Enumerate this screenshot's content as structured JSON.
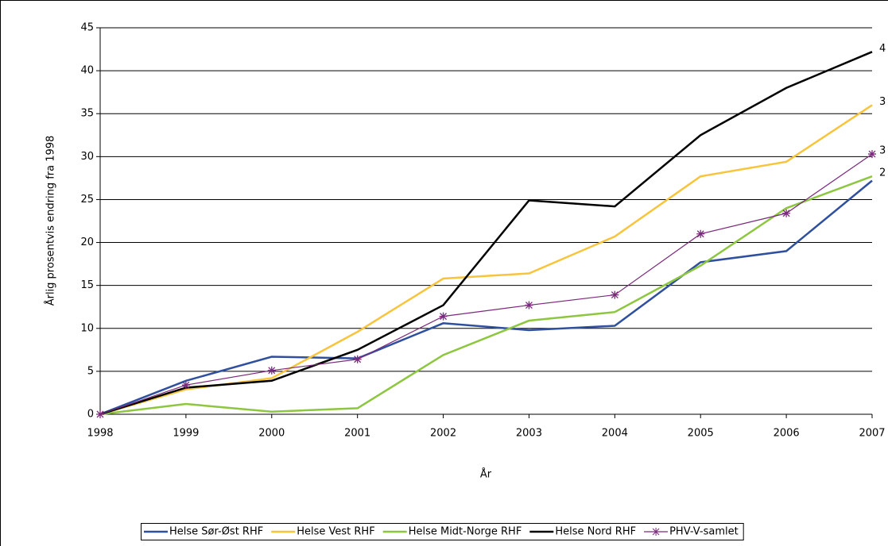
{
  "chart_data": {
    "type": "line",
    "y_label": "Årlig prosentvis endring fra 1998",
    "x_label": "År",
    "x": [
      1998,
      1999,
      2000,
      2001,
      2002,
      2003,
      2004,
      2005,
      2006,
      2007
    ],
    "xlim": [
      1998,
      2007
    ],
    "xticks": [
      1998,
      1999,
      2000,
      2001,
      2002,
      2003,
      2004,
      2005,
      2006,
      2007
    ],
    "ylim": [
      0,
      45
    ],
    "yticks": [
      0,
      5,
      10,
      15,
      20,
      25,
      30,
      35,
      40,
      45
    ],
    "grid": true,
    "legend": "bottom",
    "series": [
      {
        "name": "Helse Sør-Øst RHF",
        "color": "#2f4f9f",
        "values": [
          0,
          3.9,
          6.7,
          6.5,
          10.6,
          9.8,
          10.3,
          17.7,
          19.0,
          27.2
        ]
      },
      {
        "name": "Helse Vest RHF",
        "color": "#f7c43c",
        "values": [
          0,
          2.9,
          4.2,
          9.6,
          15.8,
          16.4,
          20.7,
          27.7,
          29.4,
          36.0
        ]
      },
      {
        "name": "Helse Midt-Norge RHF",
        "color": "#8dc63f",
        "values": [
          0,
          1.2,
          0.3,
          0.7,
          6.9,
          10.9,
          11.9,
          17.3,
          24.0,
          27.7
        ]
      },
      {
        "name": "Helse Nord RHF",
        "color": "#000000",
        "values": [
          0,
          3.1,
          3.9,
          7.5,
          12.7,
          24.9,
          24.2,
          32.5,
          38.0,
          42.2
        ]
      },
      {
        "name": "PHV-V-samlet",
        "color": "#7b2a7b",
        "marker": "asterisk",
        "values": [
          0,
          3.4,
          5.1,
          6.4,
          11.4,
          12.7,
          13.9,
          21.0,
          23.4,
          30.3
        ]
      }
    ],
    "annotations": [
      "4",
      "3",
      "3",
      "2"
    ]
  }
}
